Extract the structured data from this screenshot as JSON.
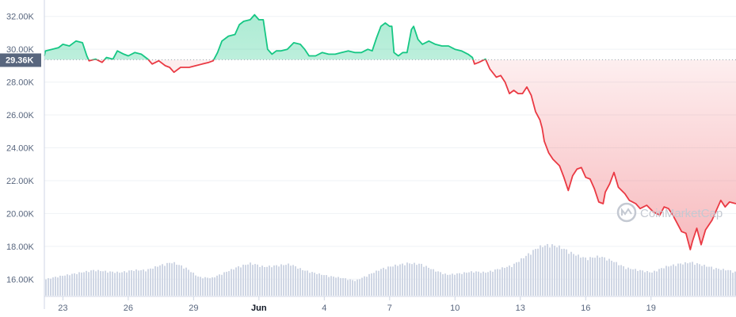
{
  "chart_data": {
    "type": "line",
    "y_unit_suffix": "K",
    "ylim": [
      15,
      33
    ],
    "y_ticks": [
      "16.00K",
      "18.00K",
      "20.00K",
      "22.00K",
      "24.00K",
      "26.00K",
      "28.00K",
      "30.00K",
      "32.00K"
    ],
    "x_ticks": [
      {
        "label": "23",
        "day": 23,
        "bold": false
      },
      {
        "label": "26",
        "day": 26,
        "bold": false
      },
      {
        "label": "29",
        "day": 29,
        "bold": false
      },
      {
        "label": "Jun",
        "day": 32,
        "bold": true
      },
      {
        "label": "4",
        "day": 35,
        "bold": false
      },
      {
        "label": "7",
        "day": 38,
        "bold": false
      },
      {
        "label": "10",
        "day": 41,
        "bold": false
      },
      {
        "label": "13",
        "day": 44,
        "bold": false
      },
      {
        "label": "16",
        "day": 47,
        "bold": false
      },
      {
        "label": "19",
        "day": 50,
        "bold": false
      }
    ],
    "xlim_days": [
      22.15,
      53.9
    ],
    "reference_value": 29.36,
    "reference_label": "29.36K",
    "colors": {
      "up": "#16c784",
      "down": "#ea3943",
      "reference_bg": "#58667e",
      "grid": "#eff2f5",
      "volume": "#cfd6e4"
    },
    "price_series": [
      [
        22.15,
        29.6
      ],
      [
        22.2,
        29.9
      ],
      [
        22.5,
        30.0
      ],
      [
        22.8,
        30.1
      ],
      [
        23.0,
        30.3
      ],
      [
        23.3,
        30.2
      ],
      [
        23.6,
        30.5
      ],
      [
        23.9,
        30.4
      ],
      [
        24.1,
        29.6
      ],
      [
        24.2,
        29.3
      ],
      [
        24.5,
        29.4
      ],
      [
        24.8,
        29.2
      ],
      [
        25.0,
        29.5
      ],
      [
        25.3,
        29.4
      ],
      [
        25.5,
        29.9
      ],
      [
        25.8,
        29.7
      ],
      [
        26.0,
        29.6
      ],
      [
        26.3,
        29.8
      ],
      [
        26.6,
        29.7
      ],
      [
        26.9,
        29.4
      ],
      [
        27.1,
        29.1
      ],
      [
        27.4,
        29.3
      ],
      [
        27.7,
        29.0
      ],
      [
        27.9,
        28.9
      ],
      [
        28.1,
        28.6
      ],
      [
        28.4,
        28.9
      ],
      [
        28.8,
        28.9
      ],
      [
        29.1,
        29.0
      ],
      [
        29.4,
        29.1
      ],
      [
        29.7,
        29.2
      ],
      [
        29.9,
        29.3
      ],
      [
        30.1,
        29.8
      ],
      [
        30.3,
        30.5
      ],
      [
        30.6,
        30.8
      ],
      [
        30.9,
        30.9
      ],
      [
        31.1,
        31.5
      ],
      [
        31.3,
        31.7
      ],
      [
        31.6,
        31.8
      ],
      [
        31.8,
        32.1
      ],
      [
        32.0,
        31.8
      ],
      [
        32.2,
        31.8
      ],
      [
        32.4,
        30.0
      ],
      [
        32.6,
        29.7
      ],
      [
        32.8,
        29.9
      ],
      [
        33.0,
        29.9
      ],
      [
        33.3,
        30.0
      ],
      [
        33.6,
        30.4
      ],
      [
        33.9,
        30.3
      ],
      [
        34.1,
        30.0
      ],
      [
        34.3,
        29.6
      ],
      [
        34.6,
        29.6
      ],
      [
        34.9,
        29.8
      ],
      [
        35.2,
        29.7
      ],
      [
        35.5,
        29.7
      ],
      [
        35.8,
        29.8
      ],
      [
        36.1,
        29.9
      ],
      [
        36.4,
        29.8
      ],
      [
        36.7,
        29.8
      ],
      [
        37.0,
        30.0
      ],
      [
        37.2,
        29.9
      ],
      [
        37.4,
        30.7
      ],
      [
        37.6,
        31.4
      ],
      [
        37.8,
        31.6
      ],
      [
        38.0,
        31.4
      ],
      [
        38.1,
        31.4
      ],
      [
        38.2,
        29.8
      ],
      [
        38.4,
        29.6
      ],
      [
        38.6,
        29.8
      ],
      [
        38.8,
        29.8
      ],
      [
        39.0,
        31.2
      ],
      [
        39.1,
        31.4
      ],
      [
        39.3,
        30.6
      ],
      [
        39.5,
        30.3
      ],
      [
        39.8,
        30.5
      ],
      [
        40.1,
        30.3
      ],
      [
        40.4,
        30.2
      ],
      [
        40.7,
        30.2
      ],
      [
        41.0,
        30.0
      ],
      [
        41.3,
        29.9
      ],
      [
        41.6,
        29.7
      ],
      [
        41.8,
        29.5
      ],
      [
        41.9,
        29.1
      ],
      [
        42.1,
        29.2
      ],
      [
        42.4,
        29.4
      ],
      [
        42.6,
        28.8
      ],
      [
        42.9,
        28.3
      ],
      [
        43.1,
        28.4
      ],
      [
        43.3,
        28.0
      ],
      [
        43.5,
        27.3
      ],
      [
        43.7,
        27.5
      ],
      [
        43.9,
        27.3
      ],
      [
        44.1,
        27.3
      ],
      [
        44.3,
        27.7
      ],
      [
        44.5,
        27.2
      ],
      [
        44.7,
        26.2
      ],
      [
        44.9,
        25.7
      ],
      [
        45.0,
        25.2
      ],
      [
        45.1,
        24.4
      ],
      [
        45.3,
        23.7
      ],
      [
        45.5,
        23.3
      ],
      [
        45.8,
        22.9
      ],
      [
        46.0,
        22.2
      ],
      [
        46.2,
        21.4
      ],
      [
        46.4,
        22.3
      ],
      [
        46.6,
        22.7
      ],
      [
        46.8,
        22.8
      ],
      [
        47.0,
        22.2
      ],
      [
        47.2,
        22.1
      ],
      [
        47.4,
        21.5
      ],
      [
        47.6,
        20.7
      ],
      [
        47.8,
        20.6
      ],
      [
        47.9,
        21.3
      ],
      [
        48.1,
        21.8
      ],
      [
        48.3,
        22.5
      ],
      [
        48.5,
        21.6
      ],
      [
        48.8,
        21.2
      ],
      [
        49.0,
        20.8
      ],
      [
        49.3,
        20.6
      ],
      [
        49.5,
        20.3
      ],
      [
        49.8,
        20.5
      ],
      [
        50.1,
        20.1
      ],
      [
        50.4,
        19.9
      ],
      [
        50.6,
        20.4
      ],
      [
        50.8,
        20.3
      ],
      [
        51.0,
        19.9
      ],
      [
        51.2,
        19.4
      ],
      [
        51.4,
        18.9
      ],
      [
        51.6,
        18.8
      ],
      [
        51.8,
        17.8
      ],
      [
        51.9,
        18.3
      ],
      [
        52.1,
        19.1
      ],
      [
        52.3,
        18.1
      ],
      [
        52.5,
        19.0
      ],
      [
        52.8,
        19.6
      ],
      [
        53.0,
        20.2
      ],
      [
        53.2,
        20.8
      ],
      [
        53.4,
        20.4
      ],
      [
        53.6,
        20.7
      ],
      [
        53.9,
        20.6
      ]
    ],
    "volume_series": [
      [
        22.15,
        0.35
      ],
      [
        22.6,
        0.4
      ],
      [
        23.2,
        0.45
      ],
      [
        23.8,
        0.5
      ],
      [
        24.4,
        0.55
      ],
      [
        25.0,
        0.52
      ],
      [
        25.6,
        0.5
      ],
      [
        26.2,
        0.55
      ],
      [
        26.8,
        0.55
      ],
      [
        27.4,
        0.65
      ],
      [
        28.0,
        0.72
      ],
      [
        28.6,
        0.6
      ],
      [
        29.2,
        0.4
      ],
      [
        29.8,
        0.38
      ],
      [
        30.4,
        0.5
      ],
      [
        31.0,
        0.62
      ],
      [
        31.6,
        0.7
      ],
      [
        32.2,
        0.62
      ],
      [
        32.8,
        0.65
      ],
      [
        33.4,
        0.68
      ],
      [
        34.0,
        0.55
      ],
      [
        34.6,
        0.48
      ],
      [
        35.2,
        0.42
      ],
      [
        35.8,
        0.38
      ],
      [
        36.4,
        0.32
      ],
      [
        37.0,
        0.45
      ],
      [
        37.6,
        0.58
      ],
      [
        38.2,
        0.65
      ],
      [
        38.8,
        0.7
      ],
      [
        39.4,
        0.68
      ],
      [
        40.0,
        0.55
      ],
      [
        40.6,
        0.45
      ],
      [
        41.2,
        0.48
      ],
      [
        41.8,
        0.52
      ],
      [
        42.4,
        0.5
      ],
      [
        43.0,
        0.58
      ],
      [
        43.6,
        0.65
      ],
      [
        44.2,
        0.85
      ],
      [
        44.8,
        1.05
      ],
      [
        45.3,
        1.1
      ],
      [
        45.8,
        1.05
      ],
      [
        46.4,
        0.9
      ],
      [
        47.0,
        0.8
      ],
      [
        47.6,
        0.85
      ],
      [
        48.2,
        0.75
      ],
      [
        48.8,
        0.6
      ],
      [
        49.4,
        0.55
      ],
      [
        50.0,
        0.5
      ],
      [
        50.6,
        0.62
      ],
      [
        51.2,
        0.68
      ],
      [
        51.8,
        0.72
      ],
      [
        52.4,
        0.65
      ],
      [
        53.0,
        0.58
      ],
      [
        53.5,
        0.55
      ],
      [
        53.9,
        0.5
      ]
    ]
  },
  "watermark": {
    "text": "CoinMarketCap",
    "icon": "coinmarketcap-logo-icon"
  }
}
